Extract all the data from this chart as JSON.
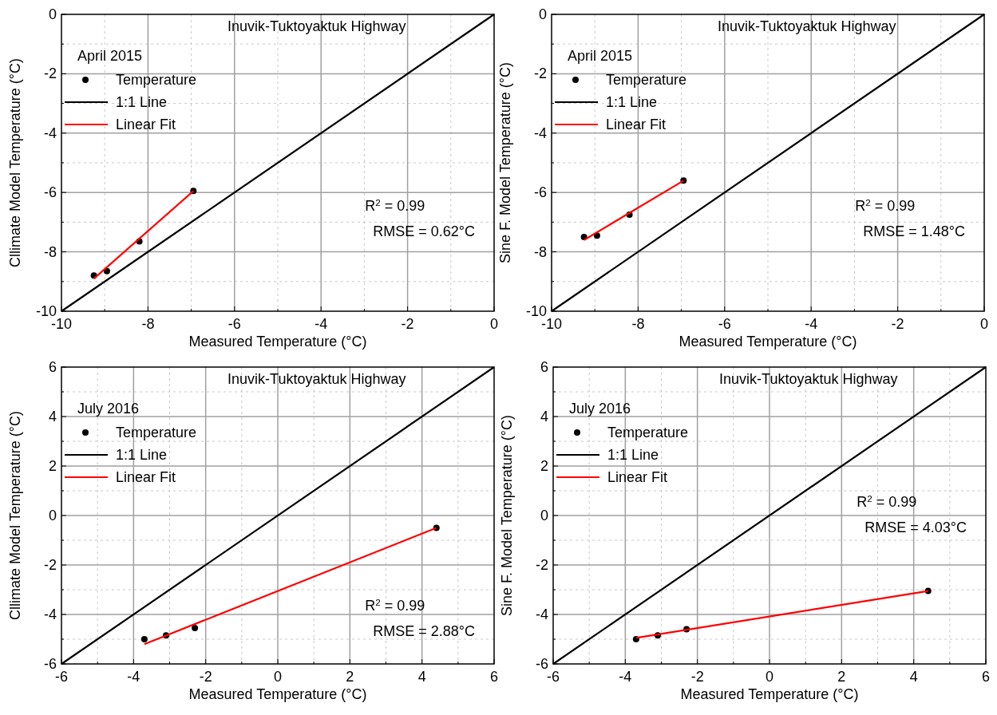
{
  "chart_data": [
    {
      "type": "scatter",
      "title": "Inuvik-Tuktoyaktuk Highway",
      "legend_title": "April 2015",
      "xlabel": "Measured Temperature (°C)",
      "ylabel": "Cllimate Model Temperature (°C)",
      "xlim": [
        -10,
        0
      ],
      "ylim": [
        -10,
        0
      ],
      "xticks": [
        -10,
        {
          "value": -9,
          "label": null
        },
        -8,
        {
          "value": -7,
          "label": null
        },
        -6,
        {
          "value": -5,
          "label": null
        },
        -4,
        {
          "value": -3,
          "label": null
        },
        -2,
        {
          "value": -1,
          "label": null
        },
        0
      ],
      "yticks": [
        -10,
        {
          "value": -9,
          "label": null
        },
        -8,
        {
          "value": -7,
          "label": null
        },
        -6,
        {
          "value": -5,
          "label": null
        },
        -4,
        {
          "value": -3,
          "label": null
        },
        -2,
        {
          "value": -1,
          "label": null
        },
        0
      ],
      "grid": true,
      "legend": "top left",
      "annotations": [
        "R$^{2}$ = 0.99",
        "RMSE = 0.62°C"
      ],
      "series": [
        {
          "name": "Temperature",
          "marker": "circle",
          "color": "#000000",
          "x": [
            -9.25,
            -8.95,
            -8.2,
            -6.95
          ],
          "values": [
            -8.8,
            -8.65,
            -7.65,
            -5.95
          ]
        },
        {
          "name": "1:1 Line",
          "type": "line",
          "color": "#000000",
          "x": [
            -10,
            0
          ],
          "values": [
            -10,
            0
          ]
        },
        {
          "name": "Linear Fit",
          "type": "line",
          "color": "#ff0000",
          "x": [
            -9.25,
            -6.95
          ],
          "values": [
            -8.9,
            -5.95
          ]
        }
      ]
    },
    {
      "type": "scatter",
      "title": "Inuvik-Tuktoyaktuk Highway",
      "legend_title": "April 2015",
      "xlabel": "Measured Temperature (°C)",
      "ylabel": "Sine F. Model Temperature (°C)",
      "xlim": [
        -10,
        0
      ],
      "ylim": [
        -10,
        0
      ],
      "xticks": [
        -10,
        {
          "value": -9,
          "label": null
        },
        -8,
        {
          "value": -7,
          "label": null
        },
        -6,
        {
          "value": -5,
          "label": null
        },
        -4,
        {
          "value": -3,
          "label": null
        },
        -2,
        {
          "value": -1,
          "label": null
        },
        0
      ],
      "yticks": [
        -10,
        {
          "value": -9,
          "label": null
        },
        -8,
        {
          "value": -7,
          "label": null
        },
        -6,
        {
          "value": -5,
          "label": null
        },
        -4,
        {
          "value": -3,
          "label": null
        },
        -2,
        {
          "value": -1,
          "label": null
        },
        0
      ],
      "grid": true,
      "legend": "top left",
      "annotations": [
        "R$^{2}$ = 0.99",
        "RMSE = 1.48°C"
      ],
      "series": [
        {
          "name": "Temperature",
          "marker": "circle",
          "color": "#000000",
          "x": [
            -9.25,
            -8.95,
            -8.2,
            -6.95
          ],
          "values": [
            -7.5,
            -7.45,
            -6.75,
            -5.6
          ]
        },
        {
          "name": "1:1 Line",
          "type": "line",
          "color": "#000000",
          "x": [
            -10,
            0
          ],
          "values": [
            -10,
            0
          ]
        },
        {
          "name": "Linear Fit",
          "type": "line",
          "color": "#ff0000",
          "x": [
            -9.25,
            -6.95
          ],
          "values": [
            -7.6,
            -5.6
          ]
        }
      ]
    },
    {
      "type": "scatter",
      "title": "Inuvik-Tuktoyaktuk Highway",
      "legend_title": "July 2016",
      "xlabel": "Measured Temperature (°C)",
      "ylabel": "Cllimate Model Temperature (°C)",
      "xlim": [
        -6,
        6
      ],
      "ylim": [
        -6,
        6
      ],
      "xticks": [
        -6,
        {
          "value": -5,
          "label": null
        },
        -4,
        {
          "value": -3,
          "label": null
        },
        -2,
        {
          "value": -1,
          "label": null
        },
        0,
        {
          "value": 1,
          "label": null
        },
        2,
        {
          "value": 3,
          "label": null
        },
        4,
        {
          "value": 5,
          "label": null
        },
        6
      ],
      "yticks": [
        -6,
        {
          "value": -5,
          "label": null
        },
        -4,
        {
          "value": -3,
          "label": null
        },
        -2,
        {
          "value": -1,
          "label": null
        },
        0,
        {
          "value": 1,
          "label": null
        },
        2,
        {
          "value": 3,
          "label": null
        },
        4,
        {
          "value": 5,
          "label": null
        },
        6
      ],
      "grid": true,
      "legend": "top left",
      "annotations": [
        "R$^{2}$ = 0.99",
        "RMSE = 2.88°C"
      ],
      "series": [
        {
          "name": "Temperature",
          "marker": "circle",
          "color": "#000000",
          "x": [
            -3.7,
            -3.1,
            -2.3,
            4.4
          ],
          "values": [
            -5.0,
            -4.85,
            -4.55,
            -0.5
          ]
        },
        {
          "name": "1:1 Line",
          "type": "line",
          "color": "#000000",
          "x": [
            -6,
            6
          ],
          "values": [
            -6,
            6
          ]
        },
        {
          "name": "Linear Fit",
          "type": "line",
          "color": "#ff0000",
          "x": [
            -3.7,
            4.4
          ],
          "values": [
            -5.2,
            -0.5
          ]
        }
      ]
    },
    {
      "type": "scatter",
      "title": "Inuvik-Tuktoyaktuk Highway",
      "legend_title": "July 2016",
      "xlabel": "Measured Temperature (°C)",
      "ylabel": "Sine F. Model Temperature (°C)",
      "xlim": [
        -6,
        6
      ],
      "ylim": [
        -6,
        6
      ],
      "xticks": [
        -6,
        {
          "value": -5,
          "label": null
        },
        -4,
        {
          "value": -3,
          "label": null
        },
        -2,
        {
          "value": -1,
          "label": null
        },
        0,
        {
          "value": 1,
          "label": null
        },
        2,
        {
          "value": 3,
          "label": null
        },
        4,
        {
          "value": 5,
          "label": null
        },
        6
      ],
      "yticks": [
        -6,
        {
          "value": -5,
          "label": null
        },
        -4,
        {
          "value": -3,
          "label": null
        },
        -2,
        {
          "value": -1,
          "label": null
        },
        0,
        {
          "value": 1,
          "label": null
        },
        2,
        {
          "value": 3,
          "label": null
        },
        4,
        {
          "value": 5,
          "label": null
        },
        6
      ],
      "grid": true,
      "legend": "top left",
      "annotations": [
        "R$^{2}$ = 0.99",
        "RMSE = 4.03°C"
      ],
      "series": [
        {
          "name": "Temperature",
          "marker": "circle",
          "color": "#000000",
          "x": [
            -3.7,
            -3.1,
            -2.3,
            4.4
          ],
          "values": [
            -5.0,
            -4.85,
            -4.6,
            -3.05
          ]
        },
        {
          "name": "1:1 Line",
          "type": "line",
          "color": "#000000",
          "x": [
            -6,
            6
          ],
          "values": [
            -6,
            6
          ]
        },
        {
          "name": "Linear Fit",
          "type": "line",
          "color": "#ff0000",
          "x": [
            -3.7,
            4.4
          ],
          "values": [
            -4.95,
            -3.05
          ]
        }
      ]
    }
  ]
}
